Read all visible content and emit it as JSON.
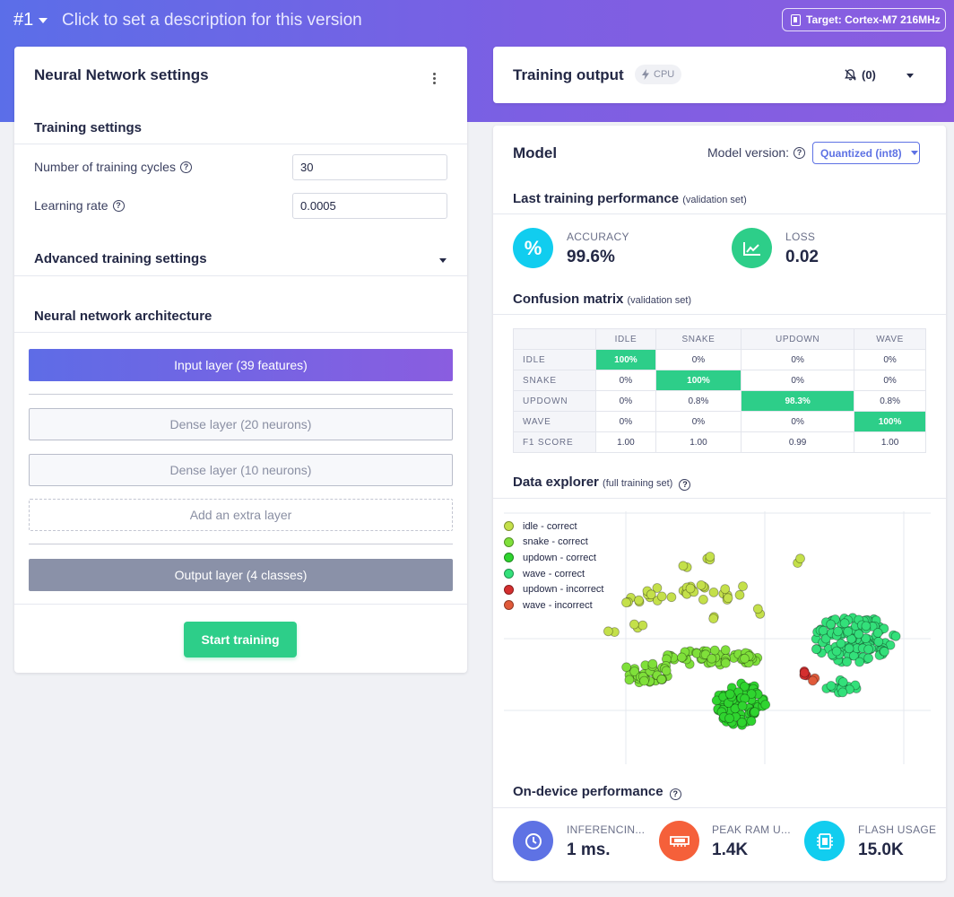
{
  "header": {
    "version": "#1",
    "description": "Click to set a description for this version",
    "target": "Target: Cortex-M7 216MHz"
  },
  "nn_settings": {
    "title": "Neural Network settings",
    "training_settings_heading": "Training settings",
    "cycles_label": "Number of training cycles",
    "cycles_value": "30",
    "lr_label": "Learning rate",
    "lr_value": "0.0005",
    "advanced_heading": "Advanced training settings",
    "architecture_heading": "Neural network architecture",
    "layers": {
      "input": "Input layer (39 features)",
      "dense1": "Dense layer (20 neurons)",
      "dense2": "Dense layer (10 neurons)",
      "extra": "Add an extra layer",
      "output": "Output layer (4 classes)"
    },
    "start_button": "Start training"
  },
  "training_output": {
    "title": "Training output",
    "badge": "CPU",
    "notifications": "(0)"
  },
  "model": {
    "title": "Model",
    "version_label": "Model version:",
    "version_value": "Quantized (int8)",
    "last_perf_heading": "Last training performance",
    "last_perf_note": "(validation set)",
    "accuracy_label": "ACCURACY",
    "accuracy_value": "99.6%",
    "loss_label": "LOSS",
    "loss_value": "0.02",
    "cm_heading": "Confusion matrix",
    "cm_note": "(validation set)",
    "confusion_matrix": {
      "columns": [
        "IDLE",
        "SNAKE",
        "UPDOWN",
        "WAVE"
      ],
      "rows": [
        {
          "label": "IDLE",
          "cells": [
            "100%",
            "0%",
            "0%",
            "0%"
          ]
        },
        {
          "label": "SNAKE",
          "cells": [
            "0%",
            "100%",
            "0%",
            "0%"
          ]
        },
        {
          "label": "UPDOWN",
          "cells": [
            "0%",
            "0.8%",
            "98.3%",
            "0.8%"
          ]
        },
        {
          "label": "WAVE",
          "cells": [
            "0%",
            "0%",
            "0%",
            "100%"
          ]
        },
        {
          "label": "F1 SCORE",
          "cells": [
            "1.00",
            "1.00",
            "0.99",
            "1.00"
          ]
        }
      ]
    },
    "explorer_heading": "Data explorer",
    "explorer_note": "(full training set)",
    "legend": [
      {
        "label": "idle - correct",
        "color": "#c4e04a"
      },
      {
        "label": "snake - correct",
        "color": "#7fe03a"
      },
      {
        "label": "updown - correct",
        "color": "#2fd42f"
      },
      {
        "label": "wave - correct",
        "color": "#33e07a"
      },
      {
        "label": "updown - incorrect",
        "color": "#d42f2f"
      },
      {
        "label": "wave - incorrect",
        "color": "#e05a3a"
      }
    ],
    "on_device_heading": "On-device performance",
    "inferencing_label": "INFERENCIN...",
    "inferencing_value": "1 ms.",
    "ram_label": "PEAK RAM U...",
    "ram_value": "1.4K",
    "flash_label": "FLASH USAGE",
    "flash_value": "15.0K"
  },
  "colors": {
    "accent": "#5e72e4",
    "success": "#2dce89",
    "accuracy_circle": "#11cdef",
    "loss_circle": "#2dce89",
    "inferencing_circle": "#5e72e4",
    "ram_circle": "#f5603a",
    "flash_circle": "#11cdef"
  }
}
